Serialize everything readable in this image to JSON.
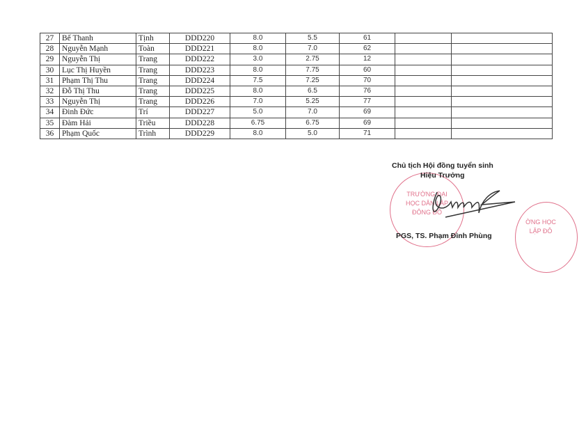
{
  "table": {
    "rows": [
      {
        "no": "27",
        "last": "Bế Thanh",
        "first": "Tịnh",
        "code": "DDD220",
        "s1": "8.0",
        "s2": "5.5",
        "s3": "61",
        "c8": "",
        "c9": ""
      },
      {
        "no": "28",
        "last": "Nguyễn Mạnh",
        "first": "Toàn",
        "code": "DDD221",
        "s1": "8.0",
        "s2": "7.0",
        "s3": "62",
        "c8": "",
        "c9": ""
      },
      {
        "no": "29",
        "last": "Nguyễn Thị",
        "first": "Trang",
        "code": "DDD222",
        "s1": "3.0",
        "s2": "2.75",
        "s3": "12",
        "c8": "",
        "c9": ""
      },
      {
        "no": "30",
        "last": "Lục Thị Huyền",
        "first": "Trang",
        "code": "DDD223",
        "s1": "8.0",
        "s2": "7.75",
        "s3": "60",
        "c8": "",
        "c9": ""
      },
      {
        "no": "31",
        "last": "Phạm Thị Thu",
        "first": "Trang",
        "code": "DDD224",
        "s1": "7.5",
        "s2": "7.25",
        "s3": "70",
        "c8": "",
        "c9": ""
      },
      {
        "no": "32",
        "last": "Đỗ Thị Thu",
        "first": "Trang",
        "code": "DDD225",
        "s1": "8.0",
        "s2": "6.5",
        "s3": "76",
        "c8": "",
        "c9": ""
      },
      {
        "no": "33",
        "last": "Nguyễn Thị",
        "first": "Trang",
        "code": "DDD226",
        "s1": "7.0",
        "s2": "5.25",
        "s3": "77",
        "c8": "",
        "c9": ""
      },
      {
        "no": "34",
        "last": "Đinh Đức",
        "first": "Trí",
        "code": "DDD227",
        "s1": "5.0",
        "s2": "7.0",
        "s3": "69",
        "c8": "",
        "c9": ""
      },
      {
        "no": "35",
        "last": "Đàm Hải",
        "first": "Triều",
        "code": "DDD228",
        "s1": "6.75",
        "s2": "6.75",
        "s3": "69",
        "c8": "",
        "c9": ""
      },
      {
        "no": "36",
        "last": "Phạm Quốc",
        "first": "Trình",
        "code": "DDD229",
        "s1": "8.0",
        "s2": "5.0",
        "s3": "71",
        "c8": "",
        "c9": ""
      }
    ]
  },
  "signature": {
    "title": "Chủ tịch Hội đồng tuyển sinh",
    "role": "Hiệu Trưởng",
    "name": "PGS, TS. Phạm Đình Phùng",
    "stamp_text": "TRƯỜNG ĐẠI HỌC DÂN LẬP ĐÔNG ĐÔ",
    "stamp2_text": "ỜNG HỌC LẬP ĐÔ",
    "stamp_color": "#e0708a"
  }
}
